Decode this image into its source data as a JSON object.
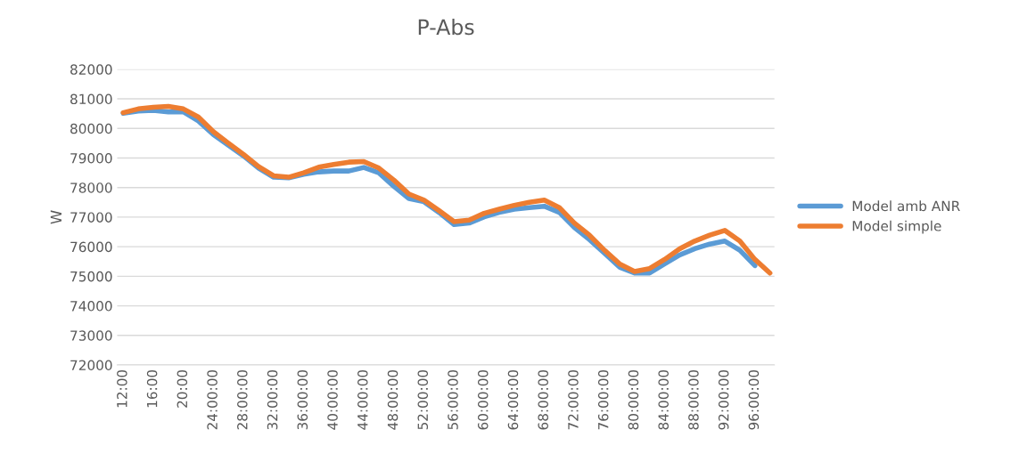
{
  "chart_data": {
    "type": "line",
    "title": "P-Abs",
    "ylabel": "W",
    "x": [
      12,
      14,
      16,
      18,
      20,
      22,
      24,
      26,
      28,
      30,
      32,
      34,
      36,
      38,
      40,
      42,
      44,
      46,
      48,
      50,
      52,
      54,
      56,
      58,
      60,
      62,
      64,
      66,
      68,
      70,
      72,
      74,
      76,
      78,
      80,
      82,
      84,
      86,
      88,
      90,
      92,
      94,
      96,
      98
    ],
    "series": [
      {
        "name": "Model amb ANR",
        "color": "#5b9bd5",
        "values": [
          80510,
          80590,
          80610,
          80560,
          80560,
          80250,
          79790,
          79430,
          79070,
          78660,
          78350,
          78330,
          78450,
          78530,
          78560,
          78560,
          78680,
          78500,
          78040,
          77630,
          77520,
          77160,
          76750,
          76800,
          77010,
          77160,
          77270,
          77320,
          77370,
          77160,
          76650,
          76240,
          75780,
          75310,
          75110,
          75110,
          75420,
          75720,
          75930,
          76090,
          76190,
          75880,
          75360,
          null
        ]
      },
      {
        "name": "Model simple",
        "color": "#ed7d31",
        "values": [
          80530,
          80660,
          80715,
          80745,
          80660,
          80385,
          79890,
          79500,
          79120,
          78710,
          78400,
          78350,
          78500,
          78690,
          78780,
          78860,
          78880,
          78660,
          78250,
          77780,
          77575,
          77220,
          76850,
          76900,
          77130,
          77270,
          77400,
          77500,
          77575,
          77320,
          76800,
          76390,
          75880,
          75420,
          75160,
          75260,
          75570,
          75930,
          76190,
          76390,
          76550,
          76190,
          75570,
          75110
        ]
      }
    ],
    "xlim": [
      11.2,
      98.6
    ],
    "xticks": [
      {
        "value": 12,
        "label": "12:00"
      },
      {
        "value": 16,
        "label": "16:00"
      },
      {
        "value": 20,
        "label": "20:00"
      },
      {
        "value": 24,
        "label": "24:00:00"
      },
      {
        "value": 28,
        "label": "28:00:00"
      },
      {
        "value": 32,
        "label": "32:00:00"
      },
      {
        "value": 36,
        "label": "36:00:00"
      },
      {
        "value": 40,
        "label": "40:00:00"
      },
      {
        "value": 44,
        "label": "44:00:00"
      },
      {
        "value": 48,
        "label": "48:00:00"
      },
      {
        "value": 52,
        "label": "52:00:00"
      },
      {
        "value": 56,
        "label": "56:00:00"
      },
      {
        "value": 60,
        "label": "60:00:00"
      },
      {
        "value": 64,
        "label": "64:00:00"
      },
      {
        "value": 68,
        "label": "68:00:00"
      },
      {
        "value": 72,
        "label": "72:00:00"
      },
      {
        "value": 76,
        "label": "76:00:00"
      },
      {
        "value": 80,
        "label": "80:00:00"
      },
      {
        "value": 84,
        "label": "84:00:00"
      },
      {
        "value": 88,
        "label": "88:00:00"
      },
      {
        "value": 92,
        "label": "92:00:00"
      },
      {
        "value": 96,
        "label": "96:00:00"
      }
    ],
    "ylim": [
      72000,
      82000
    ],
    "yticks": [
      72000,
      73000,
      74000,
      75000,
      76000,
      77000,
      78000,
      79000,
      80000,
      81000,
      82000
    ],
    "grid": "y",
    "legend": "right",
    "marker": "none",
    "line_style": "solid"
  }
}
